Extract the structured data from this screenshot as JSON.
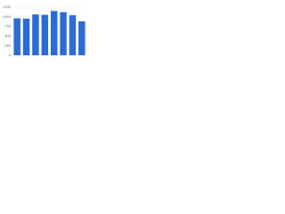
{
  "chart_data": {
    "type": "bar",
    "values": [
      960,
      950,
      1060,
      1050,
      1150,
      1120,
      1040,
      880
    ],
    "color": "#2b6ad8",
    "ylim": [
      0,
      1250
    ],
    "yticks": [
      0,
      250,
      500,
      750,
      1000,
      1250
    ],
    "grid": true
  }
}
